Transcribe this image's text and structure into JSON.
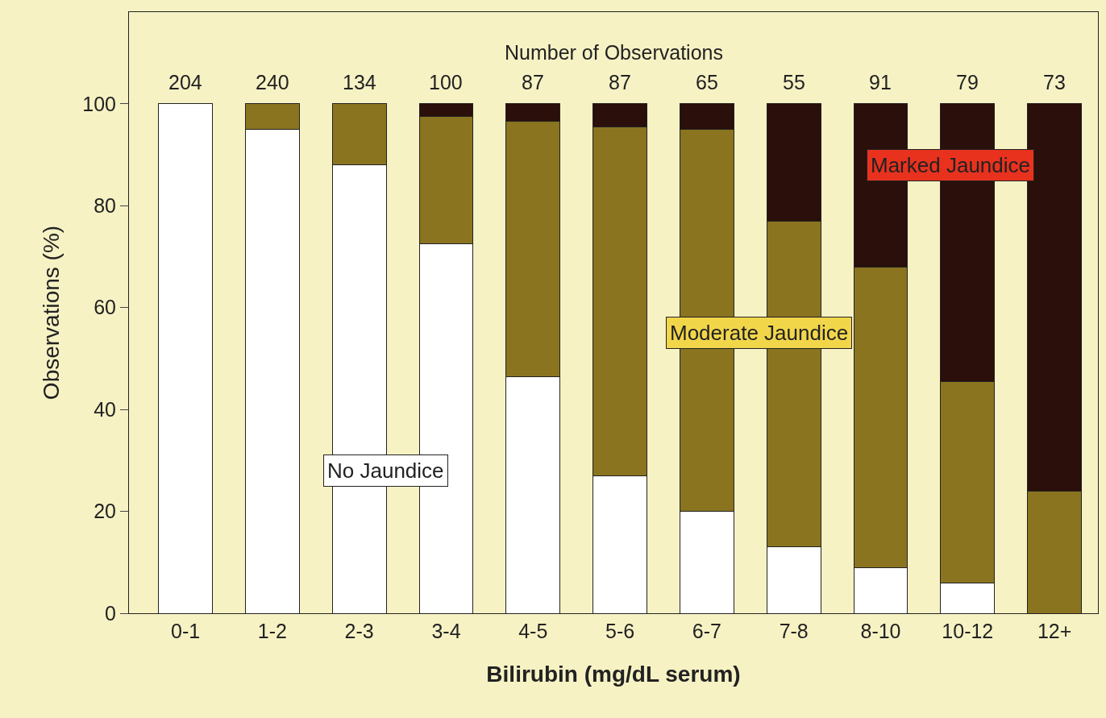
{
  "chart_data": {
    "type": "bar",
    "stacked": true,
    "xlabel": "Bilirubin (mg/dL serum)",
    "ylabel": "Observations (%)",
    "categories": [
      "0-1",
      "1-2",
      "2-3",
      "3-4",
      "4-5",
      "5-6",
      "6-7",
      "7-8",
      "8-10",
      "10-12",
      "12+"
    ],
    "series": [
      {
        "name": "No Jaundice",
        "color": "#ffffff",
        "values": [
          100,
          95,
          88,
          72.5,
          46.5,
          27,
          20,
          13,
          9,
          6,
          0
        ]
      },
      {
        "name": "Moderate Jaundice",
        "color": "#8a7420",
        "values": [
          0,
          5,
          12,
          25,
          50,
          68.5,
          75,
          64,
          59,
          39.5,
          24
        ]
      },
      {
        "name": "Marked Jaundice",
        "color": "#2a0f0a",
        "values": [
          0,
          0,
          0,
          2.5,
          3.5,
          4.5,
          5,
          23,
          32,
          54.5,
          76
        ]
      }
    ],
    "ylim": [
      0,
      118
    ],
    "yticks": [
      0,
      20,
      40,
      60,
      80,
      100
    ],
    "annotations": [
      "Number of Observations",
      "204",
      "240",
      "134",
      "100",
      "87",
      "87",
      "65",
      "55",
      "91",
      "79",
      "73"
    ],
    "grid": false,
    "legend": false
  }
}
